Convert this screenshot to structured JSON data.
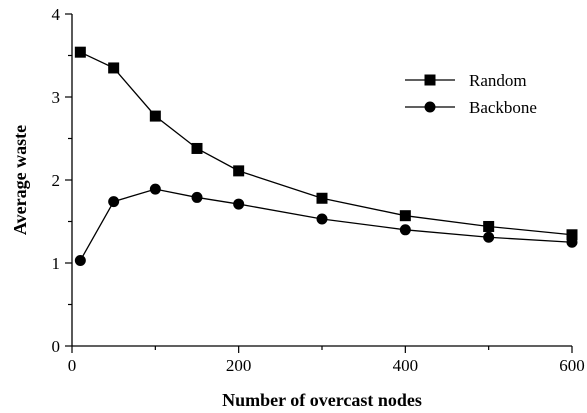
{
  "chart_data": {
    "type": "line",
    "xlabel": "Number of overcast nodes",
    "ylabel": "Average waste",
    "xlim": [
      0,
      600
    ],
    "ylim": [
      0,
      4
    ],
    "xticks": [
      0,
      200,
      400,
      600
    ],
    "yticks": [
      0,
      1,
      2,
      3,
      4
    ],
    "grid": false,
    "legend_position": "top-right",
    "series": [
      {
        "name": "Random",
        "marker": "square",
        "x": [
          10,
          50,
          100,
          150,
          200,
          300,
          400,
          500,
          600
        ],
        "values": [
          3.54,
          3.35,
          2.77,
          2.38,
          2.11,
          1.78,
          1.57,
          1.44,
          1.34
        ]
      },
      {
        "name": "Backbone",
        "marker": "circle",
        "x": [
          10,
          50,
          100,
          150,
          200,
          300,
          400,
          500,
          600
        ],
        "values": [
          1.03,
          1.74,
          1.89,
          1.79,
          1.71,
          1.53,
          1.4,
          1.31,
          1.25
        ]
      }
    ]
  }
}
